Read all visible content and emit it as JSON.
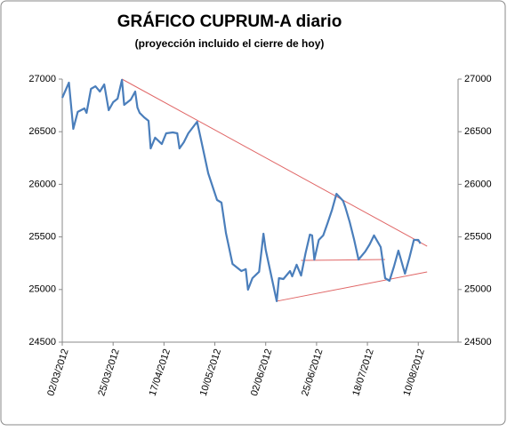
{
  "chart_data": {
    "type": "line",
    "title": "GRÁFICO  CUPRUM-A  diario",
    "subtitle": "(proyección  incluido  el cierre de hoy)",
    "x": [
      "02/03/2012",
      "05/03/2012",
      "07/03/2012",
      "09/03/2012",
      "12/03/2012",
      "13/03/2012",
      "15/03/2012",
      "17/03/2012",
      "19/03/2012",
      "21/03/2012",
      "23/03/2012",
      "25/03/2012",
      "27/03/2012",
      "29/03/2012",
      "30/03/2012",
      "02/04/2012",
      "04/04/2012",
      "05/04/2012",
      "06/04/2012",
      "08/04/2012",
      "10/04/2012",
      "11/04/2012",
      "13/04/2012",
      "16/04/2012",
      "18/04/2012",
      "21/04/2012",
      "23/04/2012",
      "24/04/2012",
      "26/04/2012",
      "28/04/2012",
      "02/05/2012",
      "04/05/2012",
      "07/05/2012",
      "11/05/2012",
      "13/05/2012",
      "15/05/2012",
      "18/05/2012",
      "22/05/2012",
      "24/05/2012",
      "25/05/2012",
      "27/05/2012",
      "30/05/2012",
      "01/06/2012",
      "02/06/2012",
      "07/06/2012",
      "08/06/2012",
      "10/06/2012",
      "13/06/2012",
      "14/06/2012",
      "16/06/2012",
      "18/06/2012",
      "20/06/2012",
      "22/06/2012",
      "23/06/2012",
      "24/06/2012",
      "26/06/2012",
      "28/06/2012",
      "30/06/2012",
      "02/07/2012",
      "04/07/2012",
      "07/07/2012",
      "08/07/2012",
      "10/07/2012",
      "12/07/2012",
      "14/07/2012",
      "17/07/2012",
      "19/07/2012",
      "21/07/2012",
      "24/07/2012",
      "26/07/2012",
      "28/07/2012",
      "30/07/2012",
      "01/08/2012",
      "04/08/2012",
      "06/08/2012",
      "08/08/2012",
      "10/08/2012",
      "11/08/2012"
    ],
    "values": [
      26823,
      26966,
      26527,
      26688,
      26721,
      26679,
      26907,
      26932,
      26882,
      26949,
      26704,
      26780,
      26814,
      26992,
      26755,
      26806,
      26882,
      26730,
      26679,
      26637,
      26603,
      26341,
      26443,
      26383,
      26485,
      26493,
      26485,
      26341,
      26400,
      26485,
      26595,
      26400,
      26105,
      25851,
      25826,
      25538,
      25243,
      25176,
      25193,
      24998,
      25108,
      25169,
      25530,
      25378,
      24889,
      25108,
      25100,
      25176,
      25125,
      25236,
      25133,
      25345,
      25522,
      25514,
      25285,
      25471,
      25514,
      25632,
      25758,
      25910,
      25843,
      25784,
      25640,
      25471,
      25285,
      25361,
      25429,
      25514,
      25404,
      25108,
      25083,
      25218,
      25370,
      25150,
      25302,
      25471,
      25471,
      25437
    ],
    "color": "#4a7ebb",
    "trend_lines": [
      {
        "color": "#e06666",
        "x": [
          "29/03/2012",
          "14/08/2012"
        ],
        "values": [
          27000,
          25412
        ]
      },
      {
        "color": "#e06666",
        "x": [
          "18/06/2012",
          "26/07/2012"
        ],
        "values": [
          25277,
          25285
        ]
      },
      {
        "color": "#e06666",
        "x": [
          "07/06/2012",
          "14/08/2012"
        ],
        "values": [
          24889,
          25167
        ]
      }
    ],
    "xlim": [
      "02/03/2012",
      "28/08/2012"
    ],
    "xticks": [
      "02/03/2012",
      "25/03/2012",
      "17/04/2012",
      "10/05/2012",
      "02/06/2012",
      "25/06/2012",
      "18/07/2012",
      "10/08/2012"
    ],
    "ylim": [
      24500,
      27000
    ],
    "yticks": [
      24500,
      25000,
      25500,
      26000,
      26500,
      27000
    ],
    "y2lim": [
      24500,
      27000
    ],
    "y2ticks": [
      24500,
      25000,
      25500,
      26000,
      26500,
      27000
    ]
  }
}
